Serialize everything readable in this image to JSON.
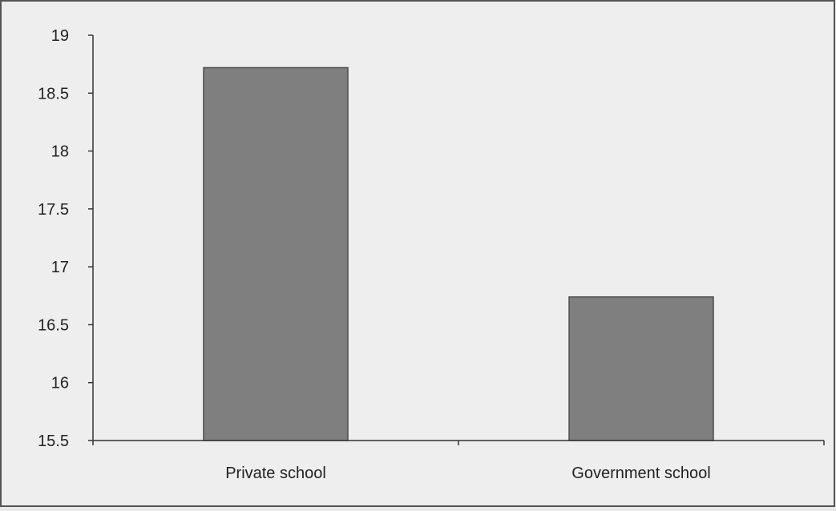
{
  "chart_data": {
    "type": "bar",
    "title": "",
    "xlabel": "",
    "ylabel": "",
    "categories": [
      "Private school",
      "Government school"
    ],
    "values": [
      18.72,
      16.74
    ],
    "ylim": [
      15.5,
      19
    ],
    "yticks": [
      "15.5",
      "16",
      "16.5",
      "17",
      "17.5",
      "18",
      "18.5",
      "19"
    ],
    "grid": false,
    "legend": "none",
    "colors": {
      "bar": "#7f7f7f",
      "bar_edge": "#4d4d4d",
      "axis": "#333333",
      "text": "#222222",
      "background": "#eeeeee",
      "frame": "#555555"
    }
  }
}
